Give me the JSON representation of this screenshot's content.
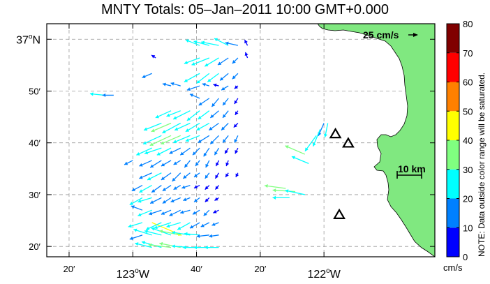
{
  "title": "MNTY Totals: 05–Jan–2011 10:00 GMT+0.000",
  "lat_ticks": [
    {
      "lat": 37.0,
      "label": "37",
      "deg": "o",
      "suffix": "N"
    },
    {
      "lat": 36.8333,
      "label": "50′"
    },
    {
      "lat": 36.6667,
      "label": "40′"
    },
    {
      "lat": 36.5,
      "label": "30′"
    },
    {
      "lat": 36.3333,
      "label": "20′"
    }
  ],
  "lon_ticks": [
    {
      "lon": -123.3333,
      "label": "20′"
    },
    {
      "lon": -123.0,
      "label": "123",
      "deg": "o",
      "suffix": "W"
    },
    {
      "lon": -122.6667,
      "label": "40′"
    },
    {
      "lon": -122.3333,
      "label": "20′"
    },
    {
      "lon": -122.0,
      "label": "122",
      "deg": "o",
      "suffix": "W"
    }
  ],
  "scale_vector_label": "25 cm/s",
  "scale_bar_label": "10 km",
  "colorbar": {
    "ticks": [
      "0",
      "10",
      "20",
      "30",
      "40",
      "50",
      "60",
      "70",
      "80"
    ],
    "unit": "cm/s",
    "note": "NOTE: Data outside color range will be saturated.",
    "colors": [
      "#0000ff",
      "#0080ff",
      "#00ffff",
      "#80ff80",
      "#ffff00",
      "#ff8000",
      "#ff0000",
      "#800000"
    ]
  },
  "land_color": "#80e880",
  "sites": [
    {
      "lat": 36.695,
      "lon": -121.94
    },
    {
      "lat": 36.665,
      "lon": -121.873
    },
    {
      "lat": 36.435,
      "lon": -121.92
    }
  ],
  "map_data": {
    "type": "current_vector_map",
    "lon_range": [
      -123.45,
      -121.42
    ],
    "lat_range": [
      36.3,
      37.05
    ],
    "vectors": [
      {
        "lat": 36.98,
        "lon": -122.65,
        "u": -20,
        "v": 8
      },
      {
        "lat": 36.98,
        "lon": -122.6,
        "u": -22,
        "v": 6
      },
      {
        "lat": 36.98,
        "lon": -122.55,
        "u": -25,
        "v": 5
      },
      {
        "lat": 36.98,
        "lon": -122.5,
        "u": -20,
        "v": 10
      },
      {
        "lat": 36.98,
        "lon": -122.45,
        "u": -18,
        "v": 4
      },
      {
        "lat": 36.98,
        "lon": -122.4,
        "u": -4,
        "v": 8
      },
      {
        "lat": 36.94,
        "lon": -122.88,
        "u": -6,
        "v": 4
      },
      {
        "lat": 36.94,
        "lon": -122.65,
        "u": -22,
        "v": -8
      },
      {
        "lat": 36.94,
        "lon": -122.6,
        "u": -25,
        "v": -10
      },
      {
        "lat": 36.94,
        "lon": -122.55,
        "u": -20,
        "v": -12
      },
      {
        "lat": 36.94,
        "lon": -122.5,
        "u": -15,
        "v": -10
      },
      {
        "lat": 36.94,
        "lon": -122.45,
        "u": -8,
        "v": -8
      },
      {
        "lat": 36.94,
        "lon": -122.4,
        "u": -3,
        "v": 8
      },
      {
        "lat": 36.89,
        "lon": -122.9,
        "u": -14,
        "v": -6
      },
      {
        "lat": 36.89,
        "lon": -122.65,
        "u": -22,
        "v": -12
      },
      {
        "lat": 36.89,
        "lon": -122.6,
        "u": -18,
        "v": -14
      },
      {
        "lat": 36.89,
        "lon": -122.55,
        "u": -16,
        "v": -12
      },
      {
        "lat": 36.89,
        "lon": -122.5,
        "u": -12,
        "v": -10
      },
      {
        "lat": 36.89,
        "lon": -122.45,
        "u": -8,
        "v": -8
      },
      {
        "lat": 36.85,
        "lon": -122.8,
        "u": -12,
        "v": 3
      },
      {
        "lat": 36.85,
        "lon": -122.75,
        "u": -14,
        "v": 4
      },
      {
        "lat": 36.85,
        "lon": -122.65,
        "u": -18,
        "v": -6
      },
      {
        "lat": 36.85,
        "lon": -122.6,
        "u": -10,
        "v": 3
      },
      {
        "lat": 36.85,
        "lon": -122.55,
        "u": -8,
        "v": 2
      },
      {
        "lat": 36.85,
        "lon": -122.5,
        "u": -10,
        "v": -6
      },
      {
        "lat": 36.85,
        "lon": -122.45,
        "u": -5,
        "v": -4
      },
      {
        "lat": 36.82,
        "lon": -123.15,
        "u": -20,
        "v": 2
      },
      {
        "lat": 36.82,
        "lon": -123.1,
        "u": -16,
        "v": 0
      },
      {
        "lat": 36.81,
        "lon": -122.65,
        "u": -14,
        "v": 6
      },
      {
        "lat": 36.81,
        "lon": -122.6,
        "u": -15,
        "v": -10
      },
      {
        "lat": 36.81,
        "lon": -122.55,
        "u": -10,
        "v": -12
      },
      {
        "lat": 36.81,
        "lon": -122.5,
        "u": -8,
        "v": -10
      },
      {
        "lat": 36.81,
        "lon": -122.45,
        "u": -5,
        "v": -8
      },
      {
        "lat": 36.77,
        "lon": -122.8,
        "u": -22,
        "v": -10
      },
      {
        "lat": 36.77,
        "lon": -122.75,
        "u": -20,
        "v": -8
      },
      {
        "lat": 36.77,
        "lon": -122.7,
        "u": -24,
        "v": -12
      },
      {
        "lat": 36.77,
        "lon": -122.65,
        "u": -18,
        "v": -14
      },
      {
        "lat": 36.77,
        "lon": -122.6,
        "u": -16,
        "v": -12
      },
      {
        "lat": 36.77,
        "lon": -122.55,
        "u": -12,
        "v": -10
      },
      {
        "lat": 36.77,
        "lon": -122.5,
        "u": -8,
        "v": -10
      },
      {
        "lat": 36.77,
        "lon": -122.45,
        "u": -4,
        "v": -6
      },
      {
        "lat": 36.73,
        "lon": -122.85,
        "u": -25,
        "v": -10
      },
      {
        "lat": 36.73,
        "lon": -122.8,
        "u": -28,
        "v": -12
      },
      {
        "lat": 36.73,
        "lon": -122.75,
        "u": -26,
        "v": -14
      },
      {
        "lat": 36.73,
        "lon": -122.7,
        "u": -22,
        "v": -10
      },
      {
        "lat": 36.73,
        "lon": -122.65,
        "u": -20,
        "v": -12
      },
      {
        "lat": 36.73,
        "lon": -122.6,
        "u": -18,
        "v": -10
      },
      {
        "lat": 36.73,
        "lon": -122.55,
        "u": -14,
        "v": -10
      },
      {
        "lat": 36.73,
        "lon": -122.5,
        "u": -10,
        "v": -10
      },
      {
        "lat": 36.73,
        "lon": -122.45,
        "u": -6,
        "v": -6
      },
      {
        "lat": 36.69,
        "lon": -122.85,
        "u": -26,
        "v": -12
      },
      {
        "lat": 36.69,
        "lon": -122.8,
        "u": -30,
        "v": -14
      },
      {
        "lat": 36.69,
        "lon": -122.75,
        "u": -28,
        "v": -12
      },
      {
        "lat": 36.69,
        "lon": -122.7,
        "u": -24,
        "v": -10
      },
      {
        "lat": 36.69,
        "lon": -122.65,
        "u": -20,
        "v": -8
      },
      {
        "lat": 36.69,
        "lon": -122.6,
        "u": -16,
        "v": -10
      },
      {
        "lat": 36.69,
        "lon": -122.55,
        "u": -12,
        "v": -12
      },
      {
        "lat": 36.69,
        "lon": -122.5,
        "u": -8,
        "v": -10
      },
      {
        "lat": 36.69,
        "lon": -122.45,
        "u": -5,
        "v": -10
      },
      {
        "lat": 36.65,
        "lon": -122.9,
        "u": -22,
        "v": -10
      },
      {
        "lat": 36.65,
        "lon": -122.85,
        "u": -24,
        "v": -8
      },
      {
        "lat": 36.65,
        "lon": -122.8,
        "u": -20,
        "v": -10
      },
      {
        "lat": 36.65,
        "lon": -122.75,
        "u": -16,
        "v": -8
      },
      {
        "lat": 36.65,
        "lon": -122.7,
        "u": -14,
        "v": -10
      },
      {
        "lat": 36.65,
        "lon": -122.65,
        "u": -10,
        "v": -10
      },
      {
        "lat": 36.65,
        "lon": -122.6,
        "u": -8,
        "v": -12
      },
      {
        "lat": 36.65,
        "lon": -122.55,
        "u": -6,
        "v": -10
      },
      {
        "lat": 36.65,
        "lon": -122.5,
        "u": -5,
        "v": -8
      },
      {
        "lat": 36.65,
        "lon": -122.45,
        "u": -4,
        "v": -8
      },
      {
        "lat": 36.61,
        "lon": -123.0,
        "u": -12,
        "v": -6
      },
      {
        "lat": 36.61,
        "lon": -122.9,
        "u": -18,
        "v": -8
      },
      {
        "lat": 36.61,
        "lon": -122.85,
        "u": -16,
        "v": -10
      },
      {
        "lat": 36.61,
        "lon": -122.8,
        "u": -14,
        "v": -8
      },
      {
        "lat": 36.61,
        "lon": -122.75,
        "u": -10,
        "v": -6
      },
      {
        "lat": 36.61,
        "lon": -122.7,
        "u": -8,
        "v": -10
      },
      {
        "lat": 36.61,
        "lon": -122.65,
        "u": -6,
        "v": -8
      },
      {
        "lat": 36.61,
        "lon": -122.6,
        "u": -5,
        "v": -10
      },
      {
        "lat": 36.61,
        "lon": -122.55,
        "u": -4,
        "v": -8
      },
      {
        "lat": 36.61,
        "lon": -122.5,
        "u": -3,
        "v": -8
      },
      {
        "lat": 36.57,
        "lon": -122.9,
        "u": -18,
        "v": -8
      },
      {
        "lat": 36.57,
        "lon": -122.85,
        "u": -20,
        "v": -10
      },
      {
        "lat": 36.57,
        "lon": -122.8,
        "u": -14,
        "v": -10
      },
      {
        "lat": 36.57,
        "lon": -122.75,
        "u": -12,
        "v": -12
      },
      {
        "lat": 36.57,
        "lon": -122.7,
        "u": -10,
        "v": -8
      },
      {
        "lat": 36.57,
        "lon": -122.65,
        "u": -8,
        "v": -6
      },
      {
        "lat": 36.57,
        "lon": -122.6,
        "u": -6,
        "v": -8
      },
      {
        "lat": 36.57,
        "lon": -122.55,
        "u": -5,
        "v": -8
      },
      {
        "lat": 36.57,
        "lon": -122.5,
        "u": -4,
        "v": -6
      },
      {
        "lat": 36.57,
        "lon": -122.45,
        "u": -3,
        "v": -6
      },
      {
        "lat": 36.53,
        "lon": -122.95,
        "u": -15,
        "v": -8
      },
      {
        "lat": 36.53,
        "lon": -122.9,
        "u": -18,
        "v": -10
      },
      {
        "lat": 36.53,
        "lon": -122.85,
        "u": -14,
        "v": -10
      },
      {
        "lat": 36.53,
        "lon": -122.8,
        "u": -12,
        "v": -8
      },
      {
        "lat": 36.53,
        "lon": -122.75,
        "u": -10,
        "v": -6
      },
      {
        "lat": 36.53,
        "lon": -122.7,
        "u": -12,
        "v": -4
      },
      {
        "lat": 36.53,
        "lon": -122.65,
        "u": -8,
        "v": -4
      },
      {
        "lat": 36.53,
        "lon": -122.6,
        "u": -6,
        "v": -6
      },
      {
        "lat": 36.53,
        "lon": -122.55,
        "u": -5,
        "v": -6
      },
      {
        "lat": 36.49,
        "lon": -122.95,
        "u": -18,
        "v": -10
      },
      {
        "lat": 36.49,
        "lon": -122.9,
        "u": -20,
        "v": -6
      },
      {
        "lat": 36.49,
        "lon": -122.85,
        "u": -16,
        "v": -8
      },
      {
        "lat": 36.49,
        "lon": -122.8,
        "u": -12,
        "v": -8
      },
      {
        "lat": 36.49,
        "lon": -122.75,
        "u": -14,
        "v": -6
      },
      {
        "lat": 36.49,
        "lon": -122.7,
        "u": -10,
        "v": -4
      },
      {
        "lat": 36.49,
        "lon": -122.65,
        "u": -8,
        "v": -6
      },
      {
        "lat": 36.49,
        "lon": -122.6,
        "u": -6,
        "v": -6
      },
      {
        "lat": 36.49,
        "lon": -122.55,
        "u": -6,
        "v": -4
      },
      {
        "lat": 36.45,
        "lon": -122.95,
        "u": -16,
        "v": 6
      },
      {
        "lat": 36.45,
        "lon": -122.9,
        "u": -20,
        "v": -8
      },
      {
        "lat": 36.45,
        "lon": -122.85,
        "u": -18,
        "v": -6
      },
      {
        "lat": 36.45,
        "lon": -122.8,
        "u": -14,
        "v": -6
      },
      {
        "lat": 36.45,
        "lon": -122.75,
        "u": -16,
        "v": -8
      },
      {
        "lat": 36.45,
        "lon": -122.7,
        "u": -14,
        "v": -4
      },
      {
        "lat": 36.45,
        "lon": -122.65,
        "u": -10,
        "v": -6
      },
      {
        "lat": 36.45,
        "lon": -122.6,
        "u": -8,
        "v": -8
      },
      {
        "lat": 36.45,
        "lon": -122.55,
        "u": -8,
        "v": -4
      },
      {
        "lat": 36.41,
        "lon": -122.95,
        "u": -20,
        "v": -6
      },
      {
        "lat": 36.41,
        "lon": -122.9,
        "u": 42,
        "v": -18
      },
      {
        "lat": 36.41,
        "lon": -122.85,
        "u": -22,
        "v": -10
      },
      {
        "lat": 36.41,
        "lon": -122.8,
        "u": -24,
        "v": -8
      },
      {
        "lat": 36.41,
        "lon": -122.75,
        "u": -20,
        "v": -6
      },
      {
        "lat": 36.41,
        "lon": -122.7,
        "u": -18,
        "v": -10
      },
      {
        "lat": 36.41,
        "lon": -122.65,
        "u": -14,
        "v": -8
      },
      {
        "lat": 36.41,
        "lon": -122.6,
        "u": -12,
        "v": -6
      },
      {
        "lat": 36.41,
        "lon": -122.55,
        "u": -10,
        "v": -4
      },
      {
        "lat": 36.37,
        "lon": -122.95,
        "u": -18,
        "v": -6
      },
      {
        "lat": 36.37,
        "lon": -122.9,
        "u": -26,
        "v": 8
      },
      {
        "lat": 36.37,
        "lon": -122.85,
        "u": -24,
        "v": 6
      },
      {
        "lat": 36.37,
        "lon": -122.8,
        "u": -28,
        "v": 10
      },
      {
        "lat": 36.37,
        "lon": -122.75,
        "u": -30,
        "v": 6
      },
      {
        "lat": 36.37,
        "lon": -122.7,
        "u": -26,
        "v": 4
      },
      {
        "lat": 36.37,
        "lon": -122.65,
        "u": -22,
        "v": 2
      },
      {
        "lat": 36.37,
        "lon": -122.6,
        "u": -18,
        "v": -2
      },
      {
        "lat": 36.37,
        "lon": -122.55,
        "u": -14,
        "v": -2
      },
      {
        "lat": 36.33,
        "lon": -122.9,
        "u": -24,
        "v": 6
      },
      {
        "lat": 36.33,
        "lon": -122.85,
        "u": -28,
        "v": 8
      },
      {
        "lat": 36.33,
        "lon": -122.8,
        "u": -32,
        "v": 4
      },
      {
        "lat": 36.33,
        "lon": -122.75,
        "u": -30,
        "v": 6
      },
      {
        "lat": 36.33,
        "lon": -122.7,
        "u": -26,
        "v": 2
      },
      {
        "lat": 36.33,
        "lon": -122.65,
        "u": -24,
        "v": 0
      },
      {
        "lat": 36.33,
        "lon": -122.6,
        "u": -22,
        "v": 0
      },
      {
        "lat": 36.33,
        "lon": -122.55,
        "u": -20,
        "v": 0
      },
      {
        "lat": 36.73,
        "lon": -122.0,
        "u": -8,
        "v": -18
      },
      {
        "lat": 36.71,
        "lon": -122.02,
        "u": -10,
        "v": -24
      },
      {
        "lat": 36.69,
        "lon": -122.04,
        "u": -16,
        "v": -22
      },
      {
        "lat": 36.73,
        "lon": -121.98,
        "u": -4,
        "v": -20
      },
      {
        "lat": 36.63,
        "lon": -122.1,
        "u": -28,
        "v": 12
      },
      {
        "lat": 36.6,
        "lon": -122.08,
        "u": -24,
        "v": 10
      },
      {
        "lat": 36.52,
        "lon": -122.2,
        "u": -30,
        "v": 4
      },
      {
        "lat": 36.51,
        "lon": -122.15,
        "u": -32,
        "v": 2
      },
      {
        "lat": 36.5,
        "lon": -122.1,
        "u": -28,
        "v": 6
      },
      {
        "lat": 36.49,
        "lon": -122.18,
        "u": -24,
        "v": 0
      }
    ]
  }
}
